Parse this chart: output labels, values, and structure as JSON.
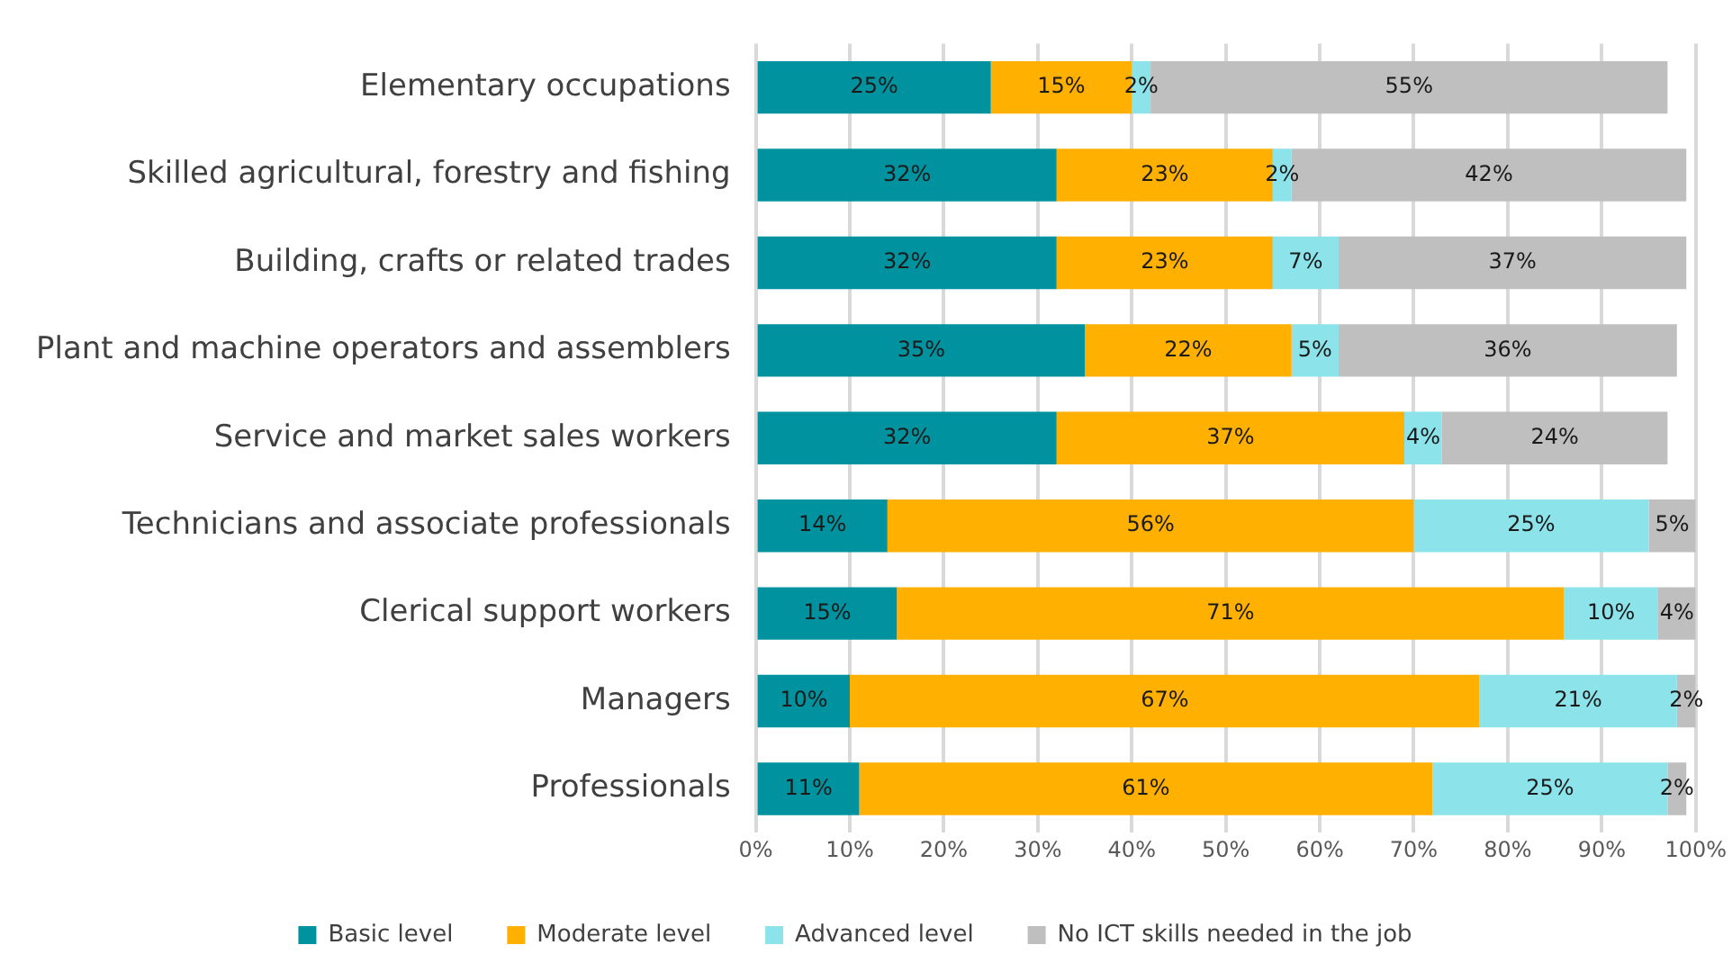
{
  "chart_data": {
    "type": "bar",
    "orientation": "horizontal",
    "stacked": true,
    "categories": [
      "Elementary occupations",
      "Skilled agricultural, forestry and fishing",
      "Building, crafts or related trades",
      "Plant and machine operators and assemblers",
      "Service and market sales workers",
      "Technicians and associate professionals",
      "Clerical support workers",
      "Managers",
      "Professionals"
    ],
    "series": [
      {
        "name": "Basic level",
        "color": "#00929f",
        "values": [
          25,
          32,
          32,
          35,
          32,
          14,
          15,
          10,
          11
        ],
        "value_labels": [
          "25%",
          "32%",
          "32%",
          "35%",
          "32%",
          "14%",
          "15%",
          "10%",
          "11%"
        ]
      },
      {
        "name": "Moderate level",
        "color": "#ffb000",
        "values": [
          15,
          23,
          23,
          22,
          37,
          56,
          71,
          67,
          61
        ],
        "value_labels": [
          "15%",
          "23%",
          "23%",
          "22%",
          "37%",
          "56%",
          "71%",
          "67%",
          "61%"
        ]
      },
      {
        "name": "Advanced level",
        "color": "#8ce3ea",
        "values": [
          2,
          2,
          7,
          5,
          4,
          25,
          10,
          21,
          25
        ],
        "value_labels": [
          "2%",
          "2%",
          "7%",
          "5%",
          "4%",
          "25%",
          "10%",
          "21%",
          "25%"
        ]
      },
      {
        "name": "No ICT skills needed in the job",
        "color": "#bfbfbf",
        "values": [
          55,
          42,
          37,
          36,
          24,
          5,
          4,
          2,
          2
        ],
        "value_labels": [
          "55%",
          "42%",
          "37%",
          "36%",
          "24%",
          "5%",
          "4%",
          "2%",
          "2%"
        ]
      }
    ],
    "xlim": [
      0,
      100
    ],
    "xticks": [
      {
        "value": 0,
        "label": "0%"
      },
      {
        "value": 10,
        "label": "10%"
      },
      {
        "value": 20,
        "label": "20%"
      },
      {
        "value": 30,
        "label": "30%"
      },
      {
        "value": 40,
        "label": "40%"
      },
      {
        "value": 50,
        "label": "50%"
      },
      {
        "value": 60,
        "label": "60%"
      },
      {
        "value": 70,
        "label": "70%"
      },
      {
        "value": 80,
        "label": "80%"
      },
      {
        "value": 90,
        "label": "90%"
      },
      {
        "value": 100,
        "label": "100%"
      }
    ],
    "grid": "x",
    "legend": "bottom"
  }
}
